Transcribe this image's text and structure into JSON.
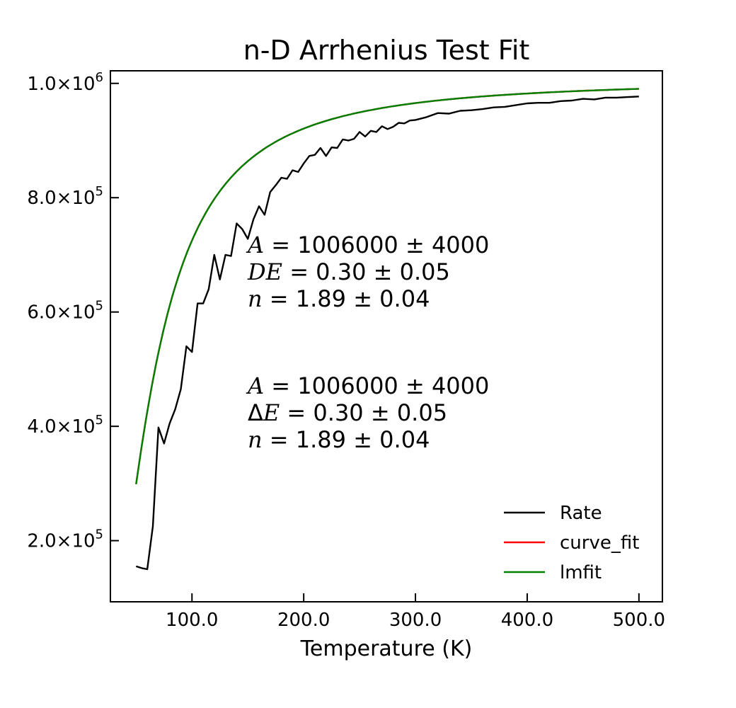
{
  "chart_data": {
    "type": "line",
    "title": "n-D Arrhenius Test Fit",
    "xlabel": "Temperature (K)",
    "ylabel": "",
    "xlim": [
      27,
      521
    ],
    "ylim": [
      93000,
      1022000
    ],
    "x_ticks": [
      {
        "value": 100,
        "label": "100.0"
      },
      {
        "value": 200,
        "label": "200.0"
      },
      {
        "value": 300,
        "label": "300.0"
      },
      {
        "value": 400,
        "label": "400.0"
      },
      {
        "value": 500,
        "label": "500.0"
      }
    ],
    "y_ticks": [
      {
        "value": 200000,
        "mantissa": "2.0",
        "exponent": "5"
      },
      {
        "value": 400000,
        "mantissa": "4.0",
        "exponent": "5"
      },
      {
        "value": 600000,
        "mantissa": "6.0",
        "exponent": "5"
      },
      {
        "value": 800000,
        "mantissa": "8.0",
        "exponent": "5"
      },
      {
        "value": 1000000,
        "mantissa": "1.0",
        "exponent": "6"
      }
    ],
    "grid": false,
    "legend_position": "lower-right",
    "series": [
      {
        "name": "Rate",
        "color": "#000000",
        "kind": "data",
        "x": [
          50,
          55,
          60,
          65,
          70,
          75,
          80,
          85,
          90,
          95,
          100,
          105,
          110,
          115,
          120,
          125,
          130,
          135,
          140,
          145,
          150,
          155,
          160,
          165,
          170,
          175,
          180,
          185,
          190,
          195,
          200,
          205,
          210,
          215,
          220,
          225,
          230,
          235,
          240,
          245,
          250,
          255,
          260,
          265,
          270,
          275,
          280,
          285,
          290,
          295,
          300,
          310,
          320,
          330,
          340,
          350,
          360,
          370,
          380,
          390,
          400,
          410,
          420,
          430,
          440,
          450,
          460,
          470,
          480,
          490,
          500
        ],
        "y": [
          155000,
          152000,
          150000,
          225000,
          398000,
          370000,
          405000,
          430000,
          465000,
          540000,
          530000,
          615000,
          615000,
          640000,
          700000,
          657000,
          700000,
          698000,
          755000,
          745000,
          728000,
          762000,
          785000,
          770000,
          810000,
          822000,
          835000,
          833000,
          848000,
          845000,
          860000,
          873000,
          875000,
          887000,
          873000,
          888000,
          887000,
          902000,
          900000,
          903000,
          915000,
          907000,
          917000,
          915000,
          925000,
          920000,
          924000,
          931000,
          930000,
          935000,
          936000,
          941000,
          948000,
          947000,
          952000,
          953000,
          955000,
          958000,
          959000,
          962000,
          965000,
          966000,
          966000,
          969000,
          970000,
          973000,
          972000,
          975000,
          975000,
          976000,
          977000
        ]
      },
      {
        "name": "curve_fit",
        "color": "#ff0000",
        "kind": "fit",
        "A": 1006000,
        "DE": 0.3,
        "n": 1.89
      },
      {
        "name": "lmfit",
        "color": "#008000",
        "kind": "fit",
        "A": 1006000,
        "DE": 0.3,
        "n": 1.89
      }
    ],
    "fit_x_range": [
      50,
      500
    ],
    "annotations": [
      {
        "lines": [
          {
            "sym": "A",
            "text": " = 1006000 ± 4000"
          },
          {
            "sym": "DE",
            "text": " = 0.30 ± 0.05"
          },
          {
            "sym": "n",
            "text": " = 1.89 ± 0.04"
          }
        ]
      },
      {
        "lines": [
          {
            "pre": "Δ",
            "sym": "E",
            "text": " = 0.30 ± 0.05"
          },
          {
            "sym": "A",
            "text": " = 1006000 ± 4000"
          },
          {
            "sym": "n",
            "text": " = 1.89 ± 0.04"
          }
        ]
      }
    ]
  }
}
